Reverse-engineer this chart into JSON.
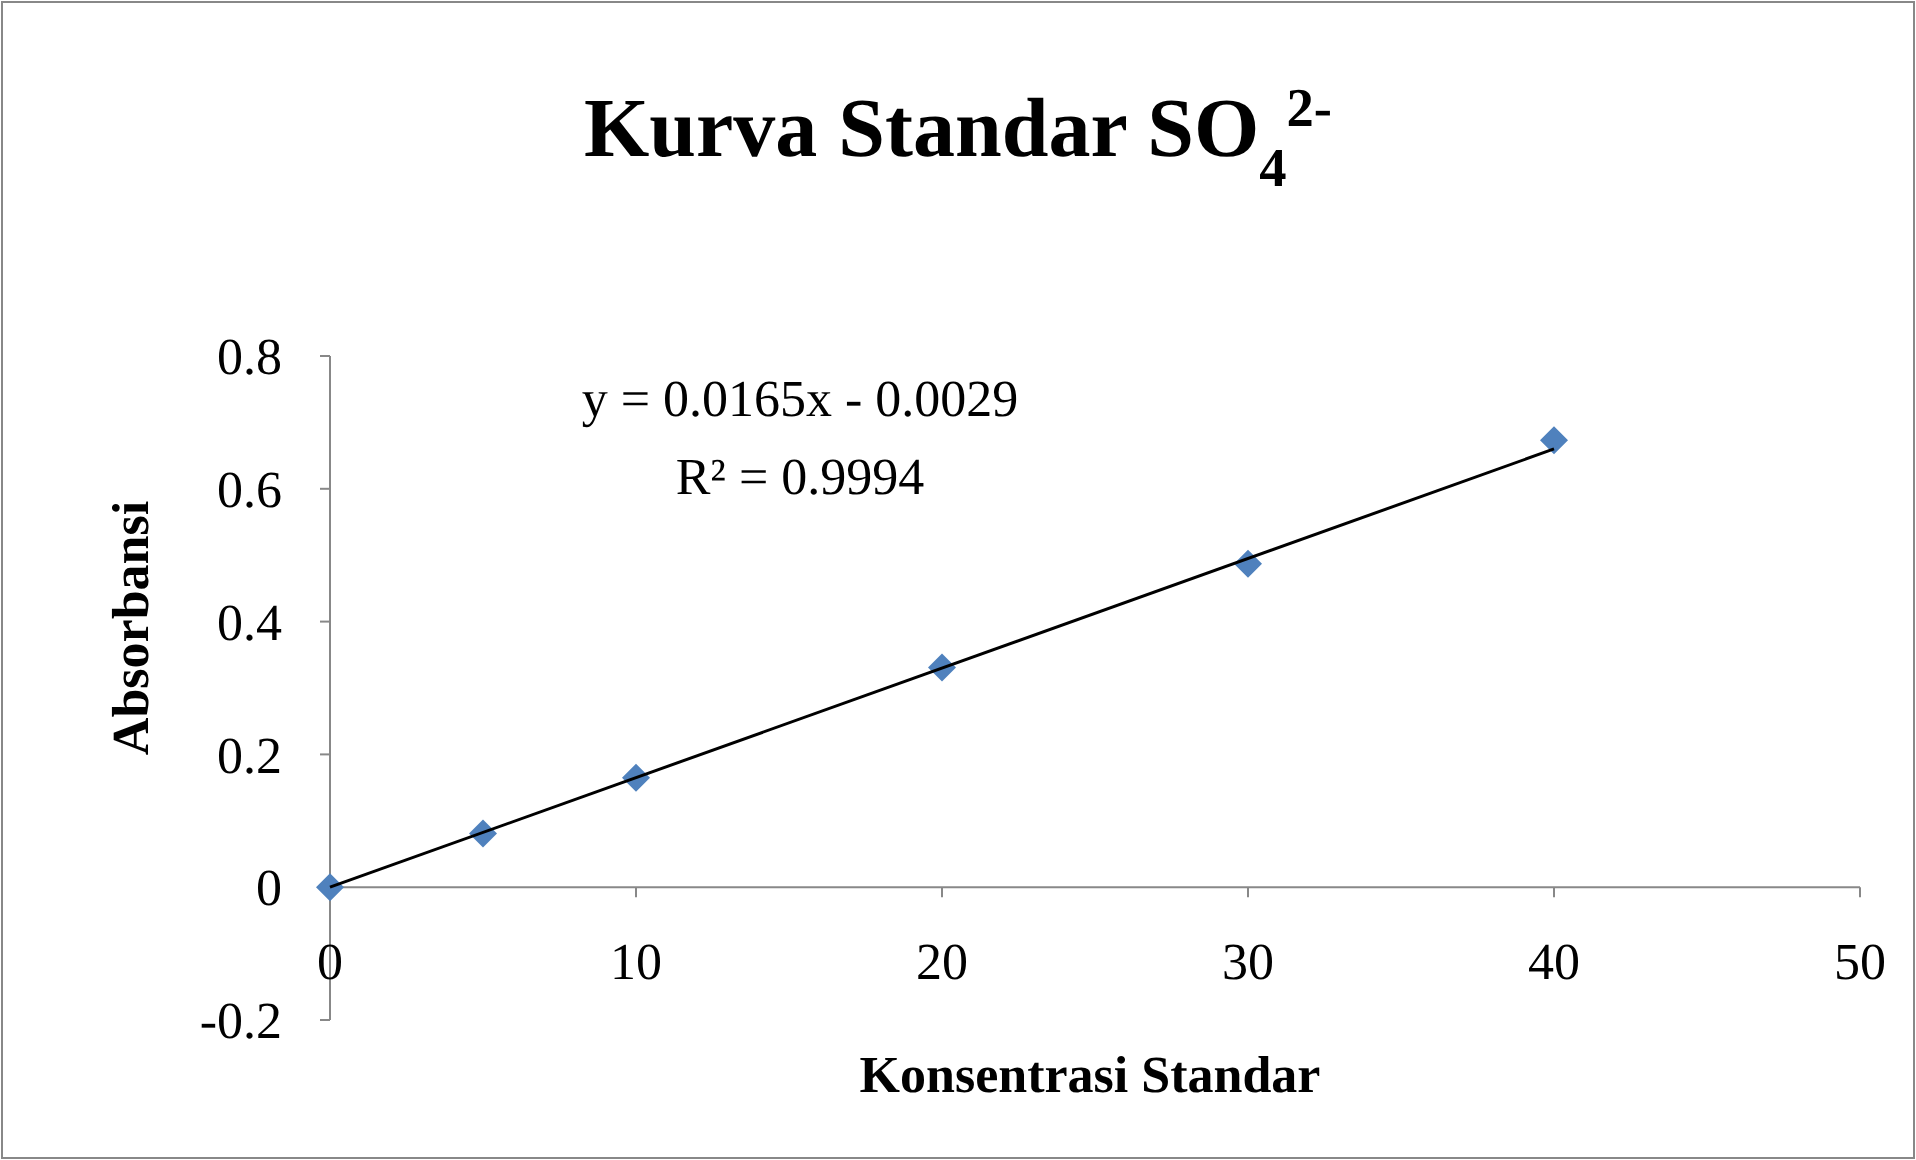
{
  "chart_data": {
    "type": "scatter",
    "title": "Kurva Standar SO$_{4}$$^{2-}$",
    "xlabel": "Konsentrasi Standar",
    "ylabel": "Absorbansi",
    "x": [
      0,
      5,
      10,
      20,
      30,
      40
    ],
    "series": [
      {
        "color": "#4f81bd",
        "marker": "diamond",
        "values": [
          0,
          0.081,
          0.165,
          0.331,
          0.487,
          0.673
        ]
      },
      {
        "type": "line",
        "color": "#000000",
        "x": [
          0,
          40
        ],
        "values": [
          0,
          0.66
        ],
        "marker": "none"
      }
    ],
    "annotations": [
      "y = 0.0165x - 0.0029",
      "R² = 0.9994"
    ],
    "xlim": [
      0,
      50
    ],
    "xticks": [
      0,
      10,
      20,
      30,
      40,
      50
    ],
    "ylim": [
      -0.2,
      0.8
    ],
    "yticks": [
      -0.2,
      0,
      0.2,
      0.4,
      0.6,
      0.8
    ],
    "grid": false
  }
}
